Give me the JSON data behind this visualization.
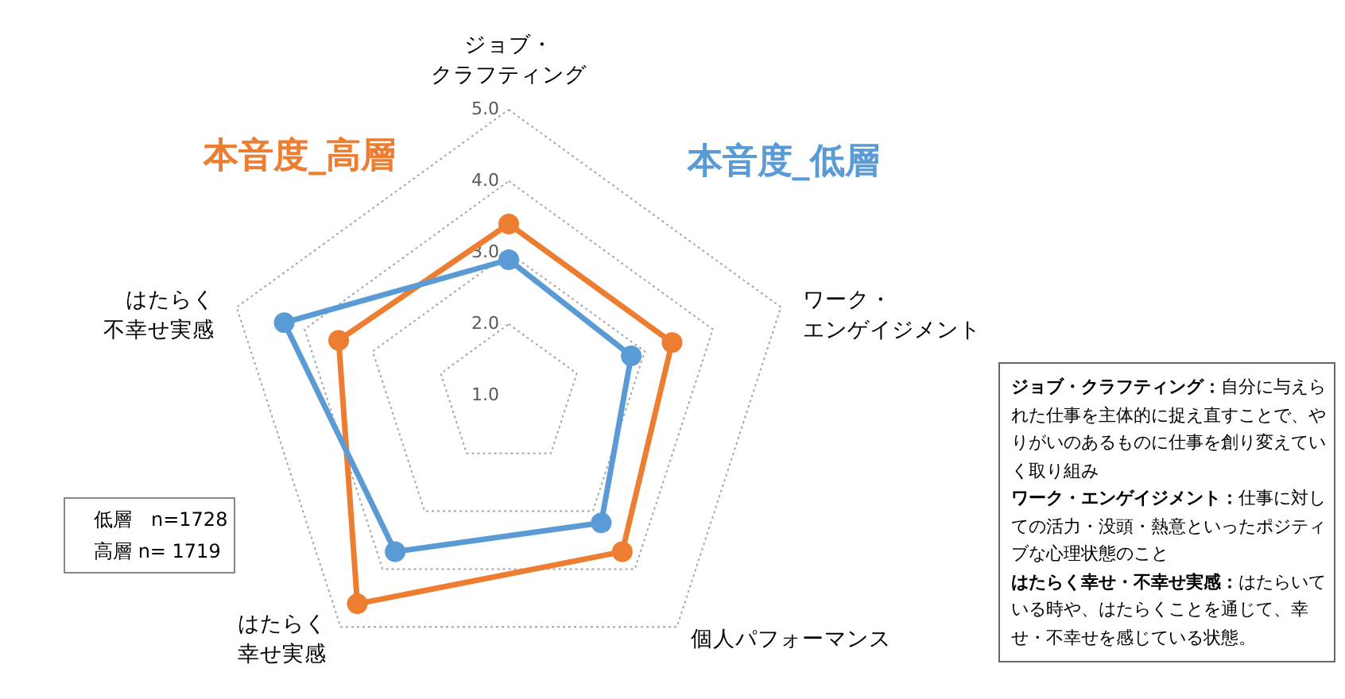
{
  "chart_data": {
    "type": "radar",
    "categories": [
      "ジョブ・クラフティング",
      "ワーク・エンゲイジメント",
      "個人パフォーマンス",
      "はたらく幸せ実感",
      "はたらく不幸せ実感"
    ],
    "series": [
      {
        "name": "本音度_高層",
        "color": "#ed7d31",
        "values": [
          3.4,
          3.4,
          3.7,
          4.6,
          3.5
        ]
      },
      {
        "name": "本音度_低層",
        "color": "#5b9bd5",
        "values": [
          2.9,
          2.8,
          3.2,
          3.7,
          4.3
        ]
      }
    ],
    "ylim": [
      1,
      5
    ],
    "yticks": [
      {
        "value": 1,
        "label": "1.0"
      },
      {
        "value": 2,
        "label": "2.0"
      },
      {
        "value": 3,
        "label": "3.0"
      },
      {
        "value": 4,
        "label": "4.0"
      },
      {
        "value": 5,
        "label": "5.0"
      }
    ],
    "grid": true,
    "marker": "circle",
    "line_style": "solid",
    "annotations": [
      "低層　n=1728",
      "高層 n= 1719",
      "ジョブ・クラフティング：自分に与えられた仕事を主体的に捉え直すことで、やりがいのあるものに仕事を創り変えていく取り組み",
      "ワーク・エンゲイジメント：仕事に対しての活力・没頭・熱意といったポジティブな心理状態のこと",
      "はたらく幸せ・不幸せ実感：はたらいている時や、はたらくことを通じて、幸せ・不幸せを感じている状態。"
    ]
  }
}
